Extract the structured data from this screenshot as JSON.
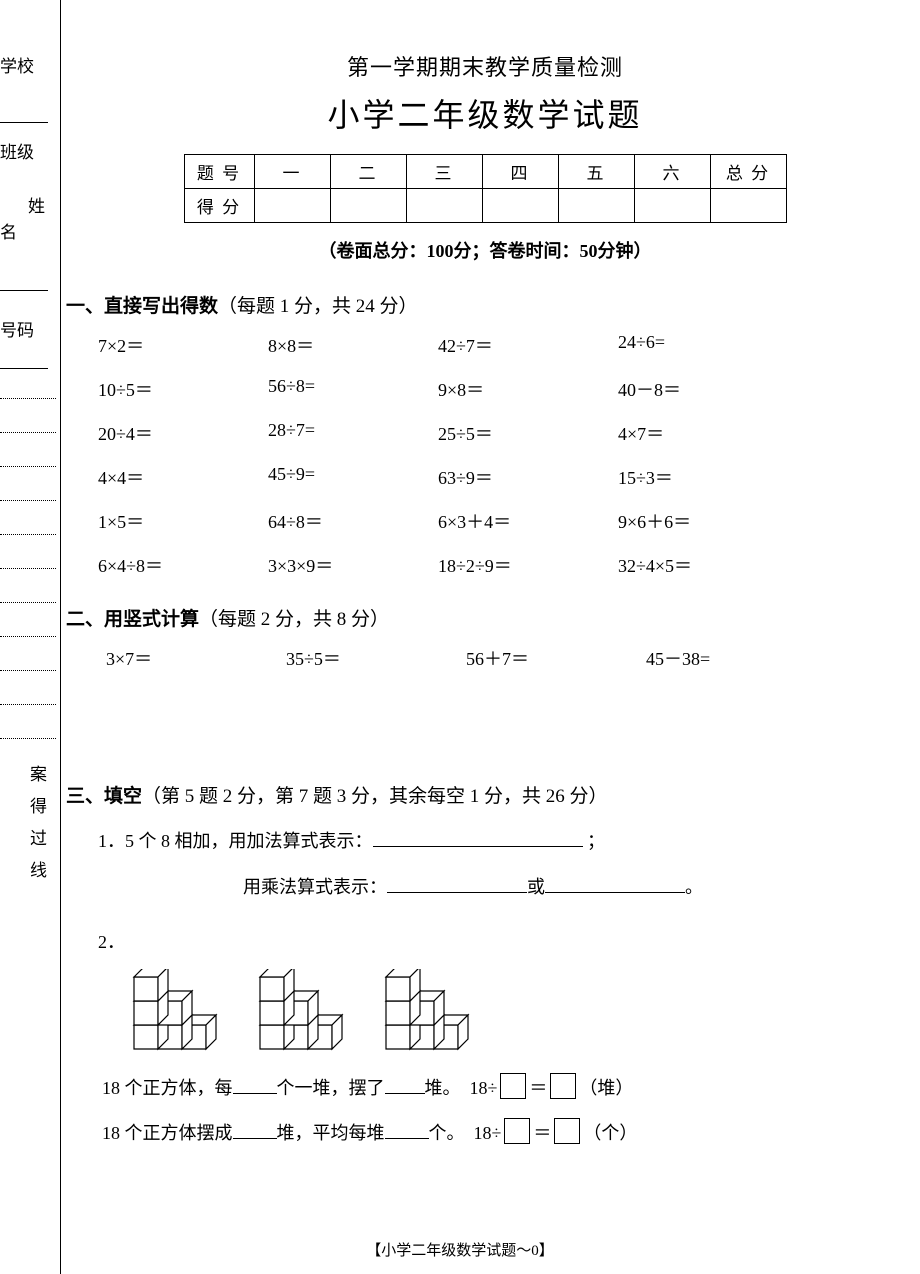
{
  "side": {
    "school": "学校",
    "class": "班级",
    "name_char1": "姓",
    "name_char2": "名",
    "number": "号码",
    "v1": "案",
    "v2": "得",
    "v3": "过",
    "v4": "线"
  },
  "header": {
    "small_title": "第一学期期末教学质量检测",
    "big_title": "小学二年级数学试题",
    "meta": "（卷面总分：100分；答卷时间：50分钟）"
  },
  "score_table": {
    "row1_label": "题 号",
    "cols": [
      "一",
      "二",
      "三",
      "四",
      "五",
      "六",
      "总 分"
    ],
    "row2_label": "得 分"
  },
  "sec1": {
    "title_bold": "一、直接写出得数",
    "title_rest": "（每题 1 分，共 24 分）",
    "rows": [
      [
        "7×2＝",
        "8×8＝",
        "42÷7＝",
        "24÷6="
      ],
      [
        "10÷5＝",
        "56÷8=",
        "9×8＝",
        "40－8＝"
      ],
      [
        "20÷4＝",
        "28÷7=",
        "25÷5＝",
        "4×7＝"
      ],
      [
        "4×4＝",
        "45÷9=",
        "63÷9＝",
        "15÷3＝"
      ],
      [
        "1×5＝",
        "64÷8＝",
        "6×3＋4＝",
        "9×6＋6＝"
      ],
      [
        "6×4÷8＝",
        "3×3×9＝",
        "18÷2÷9＝",
        "32÷4×5＝"
      ]
    ]
  },
  "sec2": {
    "title_bold": "二、用竖式计算",
    "title_rest": "（每题 2 分，共 8 分）",
    "items": [
      "3×7＝",
      "35÷5＝",
      "56＋7＝",
      "45－38="
    ]
  },
  "sec3": {
    "title_bold": "三、填空",
    "title_rest": "（第 5 题 2 分，第 7 题 3 分，其余每空 1 分，共 26 分）",
    "q1_a": "1．5 个 8 相加，用加法算式表示：",
    "q1_b": "；",
    "q1_c": "用乘法算式表示：",
    "q1_d": "或",
    "q1_e": "。",
    "q2_label": "2．",
    "q2_line1_a": "18 个正方体，每",
    "q2_line1_b": "个一堆，摆了",
    "q2_line1_c": "堆。　18÷",
    "q2_line1_d": "＝",
    "q2_line1_e": "（堆）",
    "q2_line2_a": "18 个正方体摆成",
    "q2_line2_b": "堆，平均每堆",
    "q2_line2_c": "个。　18÷",
    "q2_line2_d": "＝",
    "q2_line2_e": "（个）"
  },
  "footer": "【小学二年级数学试题～0】",
  "cube": {
    "fill": "#ffffff",
    "stroke": "#000000",
    "sw": 1.2
  }
}
